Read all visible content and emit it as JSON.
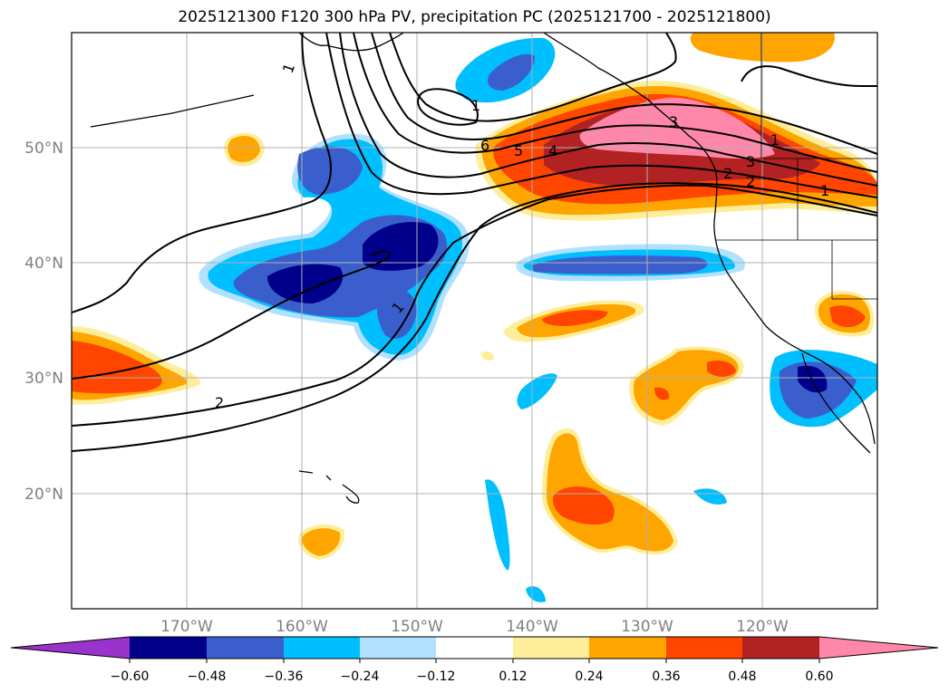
{
  "title": "2025121300 F120 300 hPa PV, precipitation PC (2025121700 - 2025121800)",
  "lon_ticks": [
    "170°W",
    "160°W",
    "150°W",
    "140°W",
    "130°W",
    "120°W"
  ],
  "lat_ticks": [
    "50°N",
    "40°N",
    "30°N",
    "20°N"
  ],
  "colorbar": {
    "ticks": [
      "-0.60",
      "-0.48",
      "-0.36",
      "-0.24",
      "-0.12",
      "0.12",
      "0.24",
      "0.36",
      "0.48",
      "0.60"
    ],
    "colors": [
      "#9933cc",
      "#00008b",
      "#3a5fcd",
      "#00bfff",
      "#b0e2ff",
      "#ffffff",
      "#ffee99",
      "#ffa500",
      "#ff4500",
      "#b22222",
      "#ff88aa"
    ]
  },
  "pv_labels": [
    "1",
    "1",
    "2",
    "1",
    "6",
    "5",
    "4",
    "3",
    "2",
    "1",
    "1",
    "2",
    "3"
  ]
}
